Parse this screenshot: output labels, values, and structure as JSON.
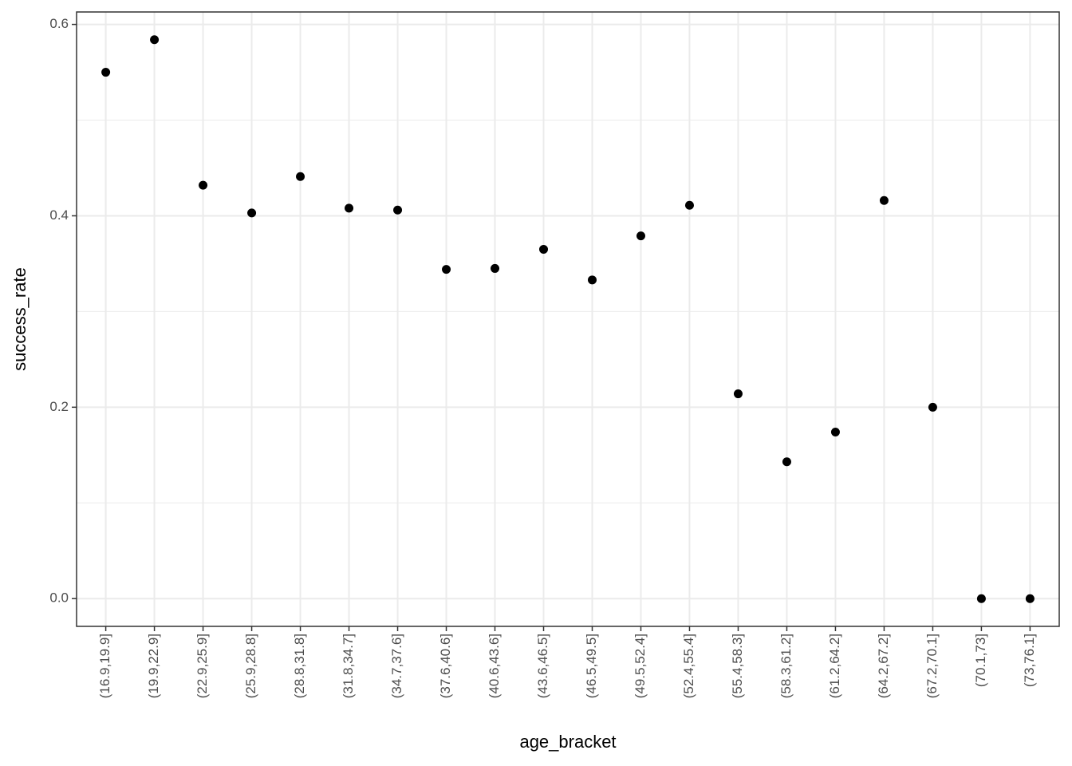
{
  "chart_data": {
    "type": "scatter",
    "x_label": "age_bracket",
    "y_label": "success_rate",
    "categories": [
      "(16.9,19.9]",
      "(19.9,22.9]",
      "(22.9,25.9]",
      "(25.9,28.8]",
      "(28.8,31.8]",
      "(31.8,34.7]",
      "(34.7,37.6]",
      "(37.6,40.6]",
      "(40.6,43.6]",
      "(43.6,46.5]",
      "(46.5,49.5]",
      "(49.5,52.4]",
      "(52.4,55.4]",
      "(55.4,58.3]",
      "(58.3,61.2]",
      "(61.2,64.2]",
      "(64.2,67.2]",
      "(67.2,70.1]",
      "(70.1,73]",
      "(73,76.1]"
    ],
    "values": [
      0.55,
      0.584,
      0.432,
      0.403,
      0.441,
      0.408,
      0.406,
      0.344,
      0.345,
      0.365,
      0.333,
      0.379,
      0.411,
      0.214,
      0.143,
      0.174,
      0.416,
      0.2,
      0,
      0
    ],
    "color": "#000000",
    "ylim": [
      -0.029,
      0.613
    ],
    "yticks": [
      {
        "value": 0,
        "label": "0.0"
      },
      0.2,
      0.4,
      0.6
    ],
    "y_minor_ticks": [
      0.1,
      0.3,
      0.5
    ],
    "grid": true
  }
}
